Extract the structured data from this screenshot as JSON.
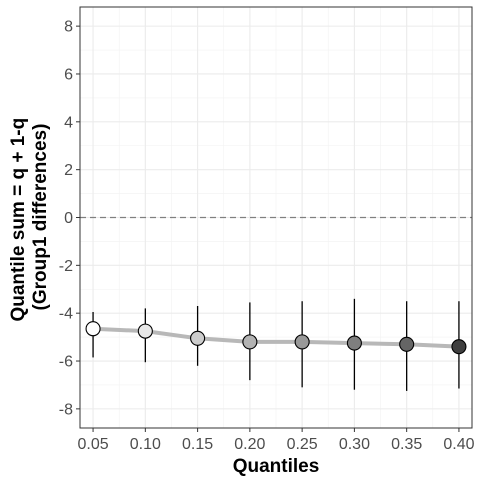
{
  "chart_data": {
    "type": "scatter",
    "xlabel": "Quantiles",
    "ylabel_lines": [
      "Quantile sum = q + 1-q",
      "(Group1 differences)"
    ],
    "x": [
      0.05,
      0.1,
      0.15,
      0.2,
      0.25,
      0.3,
      0.35,
      0.4
    ],
    "x_tick_labels": [
      "0.05",
      "0.10",
      "0.15",
      "0.20",
      "0.25",
      "0.30",
      "0.35",
      "0.40"
    ],
    "y": [
      -4.65,
      -4.75,
      -5.05,
      -5.2,
      -5.2,
      -5.25,
      -5.3,
      -5.4
    ],
    "y_lower": [
      -5.85,
      -6.05,
      -6.2,
      -6.8,
      -7.1,
      -7.2,
      -7.25,
      -7.15
    ],
    "y_upper": [
      -3.95,
      -3.8,
      -3.7,
      -3.55,
      -3.5,
      -3.4,
      -3.5,
      -3.5
    ],
    "point_colors": [
      "#ffffff",
      "#e8e8e8",
      "#cdcdcd",
      "#b3b3b3",
      "#999999",
      "#7f7f7f",
      "#656565",
      "#3f3f3f"
    ],
    "line_color": "#b8b8b8",
    "reference_line": {
      "y": 0,
      "style": "dashed",
      "color": "#808080"
    },
    "xlim": [
      0.0375,
      0.4125
    ],
    "ylim": [
      -8.8,
      8.8
    ],
    "y_ticks": [
      -8,
      -6,
      -4,
      -2,
      0,
      2,
      4,
      6,
      8
    ],
    "y_tick_labels": [
      "-8",
      "-6",
      "-4",
      "-2",
      "0",
      "2",
      "4",
      "6",
      "8"
    ],
    "grid": true,
    "legend": "none"
  }
}
